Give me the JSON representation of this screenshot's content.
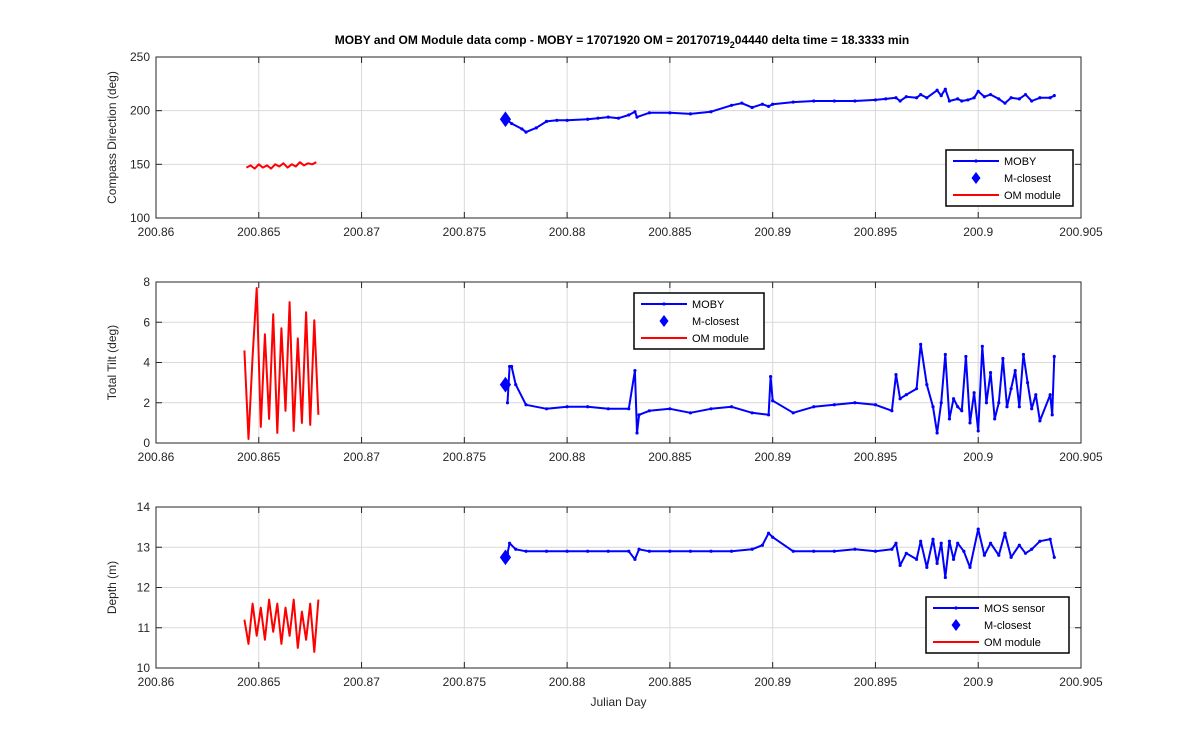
{
  "title": "MOBY and OM Module data comp - MOBY = 17071920 OM = 20170719",
  "title_sub": "2",
  "title_rest": "04440 delta time = 18.3333 min",
  "colors": {
    "moby": "#0000ff",
    "om": "#ff0000",
    "grid": "#d9d9d9",
    "axis": "#262626"
  },
  "chart_data": [
    {
      "type": "line",
      "ylabel": "Compass Direction (deg)",
      "xlabel": "",
      "xlim": [
        200.86,
        200.905
      ],
      "ylim": [
        100,
        250
      ],
      "xticks": [
        "200.86",
        "200.865",
        "200.87",
        "200.875",
        "200.88",
        "200.885",
        "200.89",
        "200.895",
        "200.9",
        "200.905"
      ],
      "yticks": [
        "100",
        "150",
        "200",
        "250"
      ],
      "grid": true,
      "legend_position": "lower-right",
      "legend": [
        "MOBY",
        "M-closest",
        "OM module"
      ],
      "series": [
        {
          "name": "MOBY",
          "x": [
            200.8771,
            200.8773,
            200.8778,
            200.878,
            200.8785,
            200.879,
            200.8795,
            200.88,
            200.881,
            200.8815,
            200.882,
            200.8825,
            200.883,
            200.8833,
            200.8834,
            200.884,
            200.885,
            200.886,
            200.887,
            200.888,
            200.8885,
            200.889,
            200.8895,
            200.8898,
            200.89,
            200.891,
            200.892,
            200.893,
            200.894,
            200.895,
            200.8955,
            200.896,
            200.8962,
            200.8965,
            200.897,
            200.8972,
            200.8975,
            200.898,
            200.8982,
            200.8984,
            200.8986,
            200.899,
            200.8992,
            200.8995,
            200.8998,
            200.9,
            200.9003,
            200.9006,
            200.901,
            200.9013,
            200.9016,
            200.902,
            200.9023,
            200.9026,
            200.903,
            200.9035,
            200.9037
          ],
          "y": [
            191,
            188,
            183,
            180,
            184,
            190,
            191,
            191,
            192,
            193,
            194,
            193,
            196,
            199,
            194,
            198,
            198,
            197,
            199,
            205,
            207,
            203,
            206,
            204,
            206,
            208,
            209,
            209,
            209,
            210,
            211,
            212,
            209,
            213,
            212,
            215,
            212,
            219,
            214,
            220,
            209,
            211,
            209,
            210,
            212,
            218,
            213,
            215,
            211,
            207,
            212,
            211,
            215,
            209,
            212,
            212,
            214
          ]
        },
        {
          "name": "M-closest",
          "x": [
            200.877
          ],
          "y": [
            192
          ]
        },
        {
          "name": "OM module",
          "x": [
            200.8644,
            200.8646,
            200.8648,
            200.865,
            200.8652,
            200.8654,
            200.8656,
            200.8658,
            200.866,
            200.8662,
            200.8664,
            200.8666,
            200.8668,
            200.867,
            200.8672,
            200.8674,
            200.8676,
            200.8678
          ],
          "y": [
            147,
            149,
            146,
            150,
            147,
            149,
            146,
            150,
            148,
            151,
            147,
            150,
            148,
            152,
            149,
            151,
            150,
            152
          ]
        }
      ]
    },
    {
      "type": "line",
      "ylabel": "Total Tilt (deg)",
      "xlabel": "",
      "xlim": [
        200.86,
        200.905
      ],
      "ylim": [
        0,
        8
      ],
      "xticks": [
        "200.86",
        "200.865",
        "200.87",
        "200.875",
        "200.88",
        "200.885",
        "200.89",
        "200.895",
        "200.9",
        "200.905"
      ],
      "yticks": [
        "0",
        "2",
        "4",
        "6",
        "8"
      ],
      "grid": true,
      "legend_position": "top-center",
      "legend": [
        "MOBY",
        "M-closest",
        "OM module"
      ],
      "series": [
        {
          "name": "MOBY",
          "x": [
            200.8771,
            200.8772,
            200.8773,
            200.8775,
            200.878,
            200.879,
            200.88,
            200.881,
            200.882,
            200.883,
            200.8833,
            200.8834,
            200.8835,
            200.884,
            200.885,
            200.886,
            200.887,
            200.888,
            200.889,
            200.8898,
            200.8899,
            200.89,
            200.891,
            200.892,
            200.893,
            200.894,
            200.895,
            200.8958,
            200.896,
            200.8962,
            200.8965,
            200.897,
            200.8972,
            200.8975,
            200.8978,
            200.898,
            200.8982,
            200.8984,
            200.8986,
            200.8988,
            200.899,
            200.8992,
            200.8994,
            200.8996,
            200.8998,
            200.9,
            200.9002,
            200.9004,
            200.9006,
            200.9008,
            200.901,
            200.9012,
            200.9014,
            200.9016,
            200.9018,
            200.902,
            200.9022,
            200.9024,
            200.9026,
            200.9028,
            200.903,
            200.9035,
            200.9036,
            200.9037
          ],
          "y": [
            2.0,
            3.8,
            3.8,
            2.9,
            1.9,
            1.7,
            1.8,
            1.8,
            1.7,
            1.7,
            3.6,
            0.5,
            1.4,
            1.6,
            1.7,
            1.5,
            1.7,
            1.8,
            1.5,
            1.4,
            3.3,
            2.1,
            1.5,
            1.8,
            1.9,
            2.0,
            1.9,
            1.6,
            3.4,
            2.2,
            2.4,
            2.7,
            4.9,
            2.9,
            1.8,
            0.5,
            2.0,
            4.4,
            1.2,
            2.2,
            1.8,
            1.6,
            4.3,
            1.0,
            2.5,
            0.6,
            4.8,
            2.0,
            3.5,
            1.2,
            2.0,
            4.2,
            1.8,
            2.7,
            3.6,
            1.8,
            4.4,
            3.0,
            1.7,
            2.4,
            1.1,
            2.4,
            1.4,
            4.3
          ]
        },
        {
          "name": "M-closest",
          "x": [
            200.877
          ],
          "y": [
            2.9
          ]
        },
        {
          "name": "OM module",
          "x": [
            200.8643,
            200.8645,
            200.8647,
            200.8649,
            200.8651,
            200.8653,
            200.8655,
            200.8657,
            200.8659,
            200.8661,
            200.8663,
            200.8665,
            200.8667,
            200.8669,
            200.8671,
            200.8673,
            200.8675,
            200.8677,
            200.8679
          ],
          "y": [
            4.6,
            0.2,
            4.3,
            7.7,
            0.8,
            5.4,
            1.2,
            6.4,
            0.5,
            5.7,
            1.6,
            7.0,
            0.6,
            5.2,
            1.0,
            6.5,
            0.9,
            6.1,
            1.4
          ]
        }
      ]
    },
    {
      "type": "line",
      "ylabel": "Depth (m)",
      "xlabel": "Julian Day",
      "xlim": [
        200.86,
        200.905
      ],
      "ylim": [
        10,
        14
      ],
      "xticks": [
        "200.86",
        "200.865",
        "200.87",
        "200.875",
        "200.88",
        "200.885",
        "200.89",
        "200.895",
        "200.9",
        "200.905"
      ],
      "yticks": [
        "10",
        "11",
        "12",
        "13",
        "14"
      ],
      "grid": true,
      "legend_position": "lower-right",
      "legend": [
        "MOS sensor",
        "M-closest",
        "OM module"
      ],
      "series": [
        {
          "name": "MOS sensor",
          "x": [
            200.8771,
            200.8772,
            200.8775,
            200.878,
            200.879,
            200.88,
            200.881,
            200.882,
            200.883,
            200.8833,
            200.8835,
            200.884,
            200.885,
            200.886,
            200.887,
            200.888,
            200.889,
            200.8895,
            200.8898,
            200.89,
            200.891,
            200.892,
            200.893,
            200.894,
            200.895,
            200.8958,
            200.896,
            200.8962,
            200.8965,
            200.897,
            200.8972,
            200.8975,
            200.8978,
            200.898,
            200.8982,
            200.8984,
            200.8986,
            200.8988,
            200.899,
            200.8993,
            200.8996,
            200.9,
            200.9003,
            200.9006,
            200.901,
            200.9013,
            200.9016,
            200.902,
            200.9023,
            200.9026,
            200.903,
            200.9035,
            200.9037
          ],
          "y": [
            12.85,
            13.1,
            12.95,
            12.9,
            12.9,
            12.9,
            12.9,
            12.9,
            12.9,
            12.7,
            12.95,
            12.9,
            12.9,
            12.9,
            12.9,
            12.9,
            12.95,
            13.05,
            13.35,
            13.25,
            12.9,
            12.9,
            12.9,
            12.95,
            12.9,
            12.95,
            13.1,
            12.55,
            12.85,
            12.7,
            13.15,
            12.5,
            13.2,
            12.6,
            13.1,
            12.25,
            13.15,
            12.7,
            13.1,
            12.9,
            12.5,
            13.45,
            12.8,
            13.1,
            12.8,
            13.35,
            12.75,
            13.05,
            12.85,
            12.95,
            13.15,
            13.2,
            12.75
          ]
        },
        {
          "name": "M-closest",
          "x": [
            200.877
          ],
          "y": [
            12.75
          ]
        },
        {
          "name": "OM module",
          "x": [
            200.8643,
            200.8645,
            200.8647,
            200.8649,
            200.8651,
            200.8653,
            200.8655,
            200.8657,
            200.8659,
            200.8661,
            200.8663,
            200.8665,
            200.8667,
            200.8669,
            200.8671,
            200.8673,
            200.8675,
            200.8677,
            200.8679
          ],
          "y": [
            11.2,
            10.6,
            11.6,
            10.8,
            11.5,
            10.7,
            11.7,
            10.9,
            11.6,
            10.6,
            11.5,
            10.8,
            11.7,
            10.5,
            11.4,
            10.7,
            11.6,
            10.4,
            11.7
          ]
        }
      ]
    }
  ]
}
